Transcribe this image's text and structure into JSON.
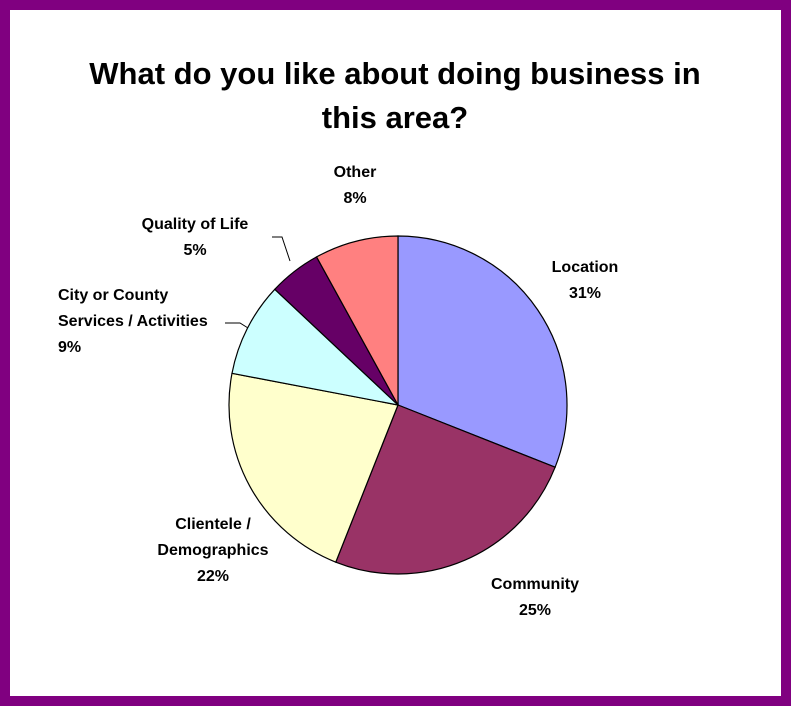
{
  "chart_data": {
    "type": "pie",
    "title": "What do you like about doing business in this area?",
    "categories": [
      "Location",
      "Community",
      "Clientele / Demographics",
      "City or County Services / Activities",
      "Quality of Life",
      "Other"
    ],
    "values": [
      31,
      25,
      22,
      9,
      5,
      8
    ],
    "value_labels": [
      "31%",
      "25%",
      "22%",
      "9%",
      "5%",
      "8%"
    ],
    "colors": [
      "#9999ff",
      "#993366",
      "#ffffcc",
      "#ccffff",
      "#660066",
      "#ff8080"
    ]
  }
}
